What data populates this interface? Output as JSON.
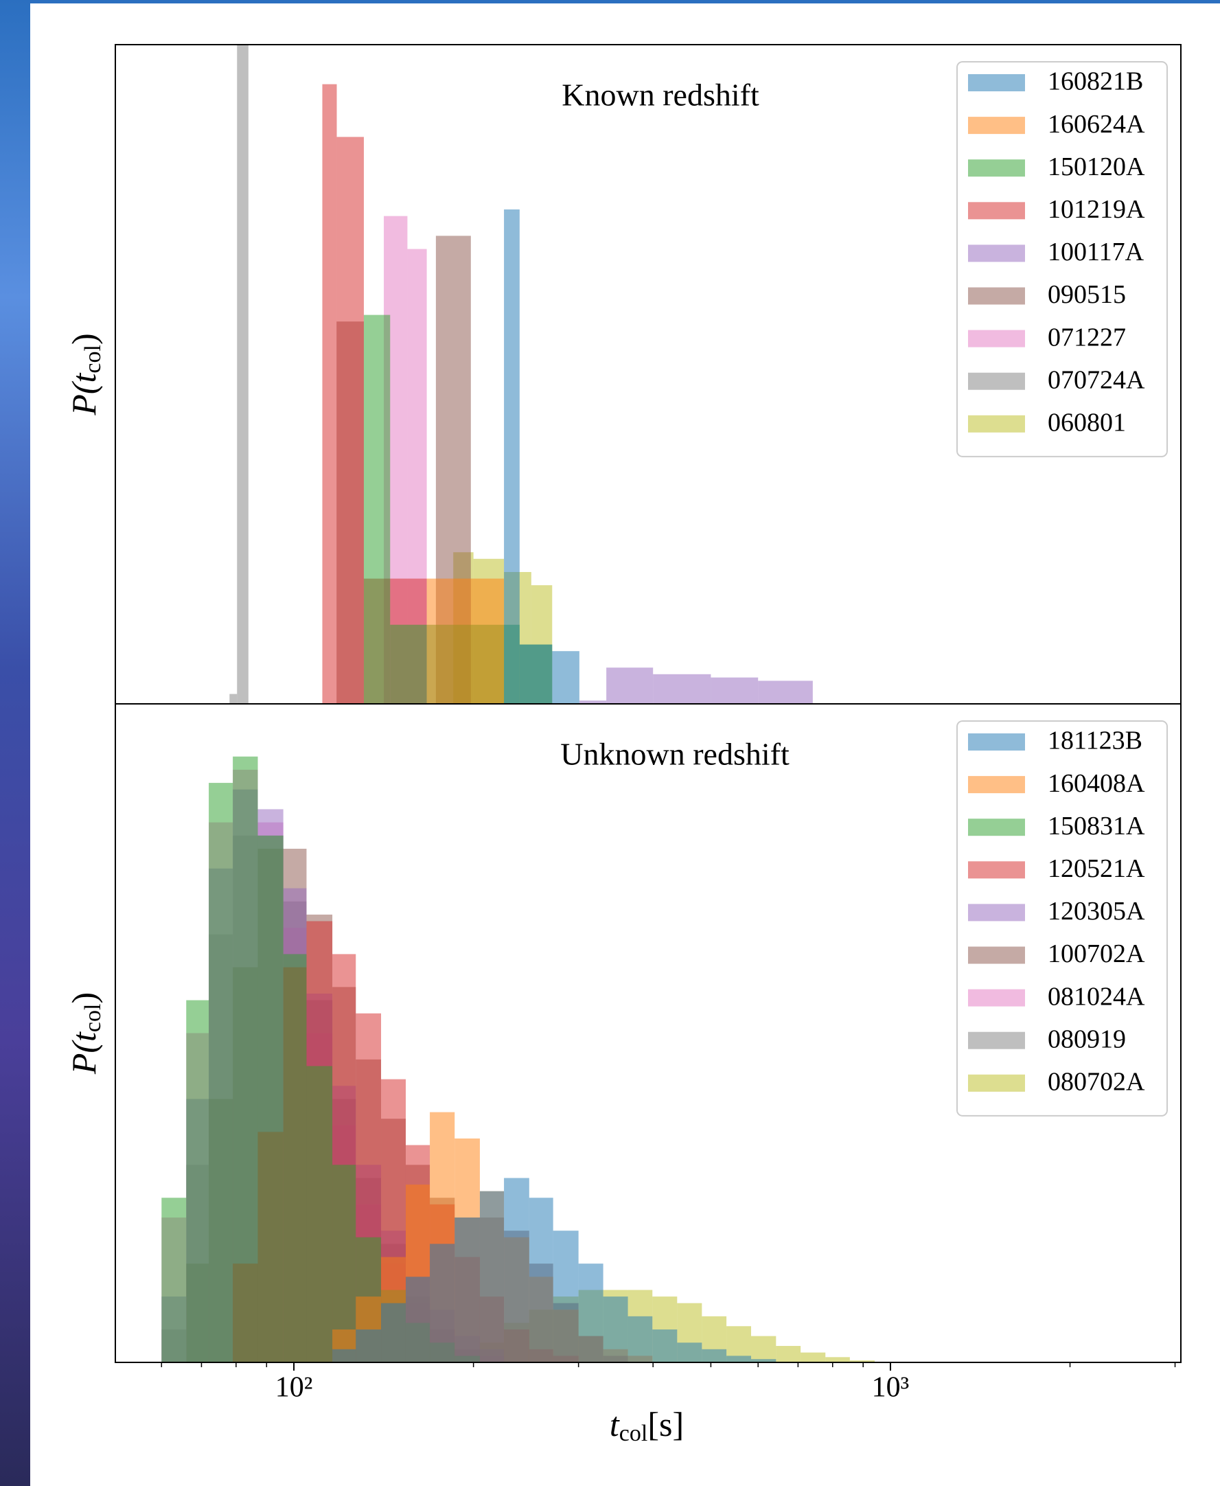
{
  "chart_data": [
    {
      "type": "histogram",
      "title": "Known redshift",
      "ylabel": {
        "main": "P(t",
        "subscript": "col",
        "end": ")"
      },
      "log_x": true,
      "xlim": [
        50.2,
        3068
      ],
      "ylim": [
        0,
        1
      ],
      "legend": "upper right",
      "series": [
        {
          "name": "160821B",
          "color": "#1f77b4",
          "bins": [
            225,
            239,
            271,
            301
          ],
          "values": [
            0.75,
            0.09,
            0.08
          ]
        },
        {
          "name": "160624A",
          "color": "#ff7f0e",
          "bins": [
            167,
            225
          ],
          "values": [
            0.19
          ]
        },
        {
          "name": "150120A",
          "color": "#2ca02c",
          "bins": [
            131,
            145,
            239,
            271
          ],
          "values": [
            0.59,
            0.12,
            0.09
          ]
        },
        {
          "name": "101219A",
          "color": "#d62728",
          "bins": [
            111.6,
            118,
            131,
            145,
            167
          ],
          "values": [
            0.94,
            0.86,
            0.19,
            0.19
          ]
        },
        {
          "name": "100117A",
          "color": "#9467bd",
          "bins": [
            301,
            334,
            400,
            500,
            600,
            741
          ],
          "values": [
            0.005,
            0.055,
            0.045,
            0.04,
            0.035
          ]
        },
        {
          "name": "090515",
          "color": "#8c564b",
          "bins": [
            117.9,
            131,
            173,
            198
          ],
          "values": [
            0.58,
            0,
            0.71
          ]
        },
        {
          "name": "071227",
          "color": "#e377c2",
          "bins": [
            141.5,
            155,
            167
          ],
          "values": [
            0.74,
            0.69
          ]
        },
        {
          "name": "070724A",
          "color": "#7f7f7f",
          "bins": [
            78,
            80.3,
            83.9
          ],
          "values": [
            0.015,
            1.0
          ]
        },
        {
          "name": "060801",
          "color": "#bcbd22",
          "bins": [
            185,
            200,
            225,
            250,
            271
          ],
          "values": [
            0.23,
            0.22,
            0.2,
            0.18
          ]
        }
      ]
    },
    {
      "type": "histogram",
      "title": "Unknown redshift",
      "ylabel": {
        "main": "P(t",
        "subscript": "col",
        "end": ")"
      },
      "xlabel": {
        "main": "t",
        "subscript": "col",
        "end": "[s]"
      },
      "log_x": true,
      "xlim": [
        50.2,
        3068
      ],
      "ylim": [
        0,
        1
      ],
      "legend": "upper right",
      "xticks": [
        {
          "value": 100,
          "label": "10²"
        },
        {
          "value": 1000,
          "label": "10³"
        }
      ],
      "xminorticks": [
        60,
        70,
        80,
        90,
        200,
        300,
        400,
        500,
        600,
        700,
        800,
        900,
        2000,
        3000
      ],
      "bins": [
        60,
        66,
        72,
        79,
        87,
        96,
        105,
        116,
        127,
        140,
        154,
        169,
        186,
        205,
        225,
        248,
        272,
        300,
        330,
        363,
        399,
        439,
        483,
        531,
        584,
        643,
        707,
        778,
        855,
        941,
        1035
      ],
      "series": [
        {
          "name": "181123B",
          "color": "#1f77b4",
          "values": [
            0,
            0,
            0,
            0,
            0,
            0,
            0,
            0.02,
            0.05,
            0.09,
            0.13,
            0.18,
            0.22,
            0.26,
            0.28,
            0.25,
            0.2,
            0.15,
            0.1,
            0.07,
            0.05,
            0.03,
            0.02,
            0.01,
            0.005,
            0,
            0,
            0,
            0,
            0
          ]
        },
        {
          "name": "160408A",
          "color": "#ff7f0e",
          "values": [
            0,
            0,
            0,
            0,
            0,
            0,
            0,
            0.05,
            0.1,
            0.16,
            0.27,
            0.38,
            0.34,
            0.26,
            0.19,
            0.13,
            0.08,
            0.04,
            0.02,
            0.01,
            0,
            0,
            0,
            0,
            0,
            0,
            0,
            0,
            0,
            0
          ]
        },
        {
          "name": "150831A",
          "color": "#2ca02c",
          "values": [
            0.25,
            0.55,
            0.88,
            0.92,
            0.8,
            0.62,
            0.45,
            0.3,
            0.19,
            0.11,
            0.06,
            0.03,
            0.01,
            0,
            0,
            0,
            0,
            0,
            0,
            0,
            0,
            0,
            0,
            0,
            0,
            0,
            0,
            0,
            0,
            0
          ]
        },
        {
          "name": "120521A",
          "color": "#d62728",
          "values": [
            0,
            0,
            0,
            0.15,
            0.35,
            0.6,
            0.67,
            0.62,
            0.53,
            0.43,
            0.33,
            0.24,
            0.16,
            0.1,
            0.05,
            0.02,
            0.01,
            0,
            0,
            0,
            0,
            0,
            0,
            0,
            0,
            0,
            0,
            0,
            0,
            0
          ]
        },
        {
          "name": "120305A",
          "color": "#9467bd",
          "values": [
            0.1,
            0.4,
            0.75,
            0.87,
            0.84,
            0.72,
            0.56,
            0.42,
            0.3,
            0.2,
            0.13,
            0.08,
            0.04,
            0.02,
            0,
            0,
            0,
            0,
            0,
            0,
            0,
            0,
            0,
            0,
            0,
            0,
            0,
            0,
            0,
            0
          ]
        },
        {
          "name": "100702A",
          "color": "#8c564b",
          "values": [
            0,
            0.15,
            0.4,
            0.6,
            0.78,
            0.78,
            0.68,
            0.57,
            0.46,
            0.37,
            0.3,
            0.25,
            0.22,
            0.22,
            0.2,
            0.15,
            0.09,
            0.04,
            0.01,
            0,
            0,
            0,
            0,
            0,
            0,
            0,
            0,
            0,
            0,
            0
          ]
        },
        {
          "name": "081024A",
          "color": "#e377c2",
          "values": [
            0.22,
            0.5,
            0.82,
            0.9,
            0.82,
            0.66,
            0.5,
            0.36,
            0.24,
            0.15,
            0.09,
            0.05,
            0.02,
            0.01,
            0,
            0,
            0,
            0,
            0,
            0,
            0,
            0,
            0,
            0,
            0,
            0,
            0,
            0,
            0,
            0
          ]
        },
        {
          "name": "080919",
          "color": "#7f7f7f",
          "values": [
            0.05,
            0.3,
            0.65,
            0.8,
            0.8,
            0.7,
            0.55,
            0.4,
            0.28,
            0.18,
            0.1,
            0.05,
            0.02,
            0,
            0,
            0,
            0,
            0,
            0,
            0,
            0,
            0,
            0,
            0,
            0,
            0,
            0,
            0,
            0,
            0
          ]
        },
        {
          "name": "080702A",
          "color": "#bcbd22",
          "values": [
            0,
            0,
            0,
            0,
            0,
            0,
            0,
            0,
            0,
            0,
            0,
            0,
            0,
            0.03,
            0.06,
            0.08,
            0.1,
            0.11,
            0.11,
            0.11,
            0.1,
            0.09,
            0.07,
            0.055,
            0.04,
            0.025,
            0.015,
            0.008,
            0.003,
            0.001
          ]
        }
      ]
    }
  ]
}
